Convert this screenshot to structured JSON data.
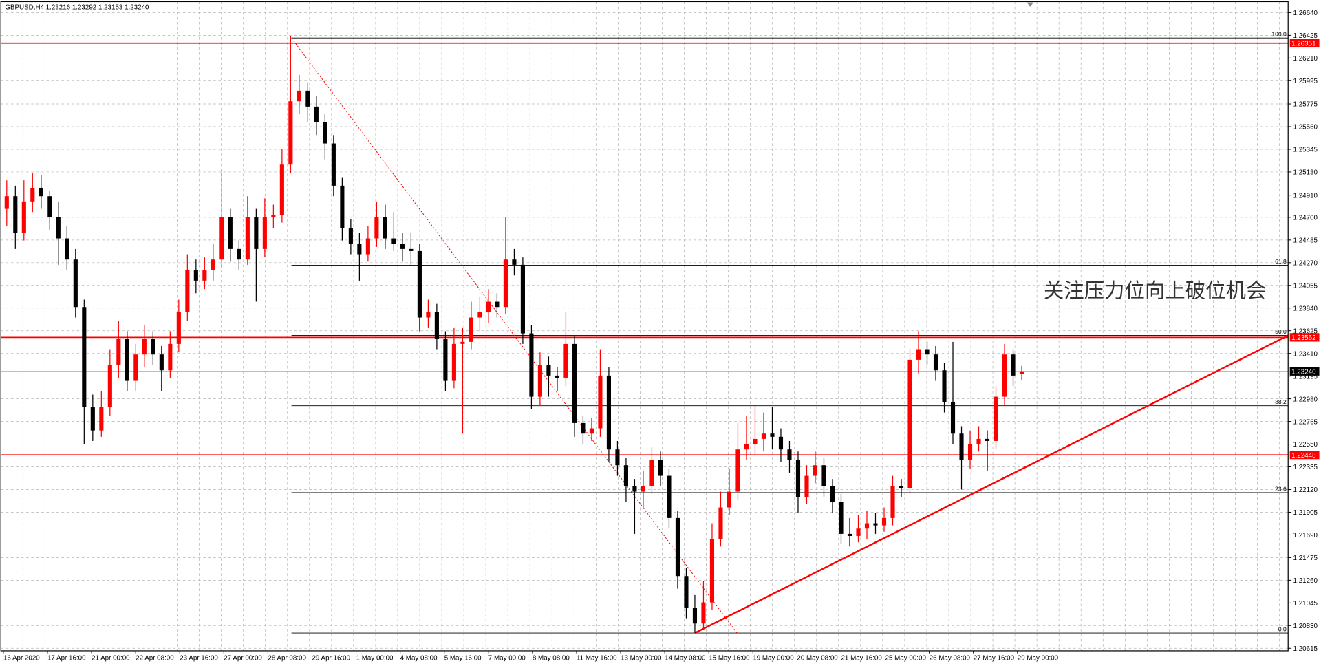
{
  "chart_data": {
    "type": "candlestick",
    "title": "GBPUSD,H4  1.23216 1.23292 1.23153 1.23240",
    "annotation": "关注压力位向上破位机会",
    "up_color": "#ff0000",
    "down_color": "#000000",
    "grid": true,
    "ylim": [
      1.20591,
      1.26744
    ],
    "yticks": [
      {
        "value": 1.2664,
        "label": "1.26640"
      },
      1.26425,
      {
        "value": 1.2621,
        "label": "1.26210"
      },
      1.25995,
      1.25775,
      {
        "value": 1.2556,
        "label": "1.25560"
      },
      1.25345,
      {
        "value": 1.2513,
        "label": "1.25130"
      },
      {
        "value": 1.2491,
        "label": "1.24910"
      },
      {
        "value": 1.247,
        "label": "1.24700"
      },
      1.24485,
      {
        "value": 1.2427,
        "label": "1.24270"
      },
      1.24055,
      {
        "value": 1.2384,
        "label": "1.23840"
      },
      1.23625,
      {
        "value": 1.2341,
        "label": "1.23410"
      },
      1.23195,
      {
        "value": 1.2298,
        "label": "1.22980"
      },
      1.22765,
      {
        "value": 1.2255,
        "label": "1.22550"
      },
      1.22335,
      {
        "value": 1.2212,
        "label": "1.22120"
      },
      1.21905,
      {
        "value": 1.2169,
        "label": "1.21690"
      },
      1.21475,
      {
        "value": 1.2126,
        "label": "1.21260"
      },
      1.21045,
      {
        "value": 1.2083,
        "label": "1.20830"
      },
      1.20615
    ],
    "xlabels": [
      "16 Apr 2020",
      "17 Apr 16:00",
      "21 Apr 00:00",
      "22 Apr 08:00",
      "23 Apr 16:00",
      "27 Apr 00:00",
      "28 Apr 08:00",
      "29 Apr 16:00",
      "1 May 00:00",
      "4 May 08:00",
      "5 May 16:00",
      "7 May 00:00",
      "8 May 08:00",
      "11 May 16:00",
      "13 May 00:00",
      "14 May 08:00",
      "15 May 16:00",
      "19 May 00:00",
      "20 May 08:00",
      "21 May 16:00",
      "25 May 00:00",
      "26 May 08:00",
      "27 May 16:00",
      "29 May 00:00"
    ],
    "hlines": [
      {
        "price": 1.26351,
        "color": "#ff0000",
        "label_color": "#ff0000"
      },
      {
        "price": 1.23562,
        "color": "#ff0000",
        "label_color": "#ff0000"
      },
      {
        "price": 1.22448,
        "color": "#ff0000",
        "label_color": "#ff0000"
      },
      {
        "price": {
          "value": 1.2324,
          "label": "1.23240"
        },
        "color": "#a8a8a8",
        "label_color": "#000000"
      }
    ],
    "fibonacci": {
      "high": 1.264,
      "low": 1.2076,
      "color": "#ff0000",
      "levels": [
        {
          "value": 100,
          "label": "100.0"
        },
        {
          "value": 61.8,
          "label": "61.8"
        },
        {
          "value": 50,
          "label": "50.0"
        },
        {
          "value": 38.2,
          "label": "38.2"
        },
        {
          "value": 23.6,
          "label": "23.6"
        },
        {
          "value": 0,
          "label": "0.0"
        }
      ]
    },
    "trend_line_end": 1.2358,
    "trend_line_color": "#ff0000",
    "ohlc": [
      [
        1.2478,
        1.2505,
        1.2462,
        1.249
      ],
      [
        1.249,
        1.25,
        1.244,
        1.2455
      ],
      [
        1.2455,
        1.2505,
        1.2448,
        1.2485
      ],
      [
        1.2485,
        1.2512,
        1.2475,
        1.2498
      ],
      [
        1.2498,
        1.251,
        1.2478,
        1.249
      ],
      [
        1.249,
        1.2495,
        1.2458,
        1.247
      ],
      [
        1.247,
        1.2485,
        1.2425,
        1.245
      ],
      [
        1.245,
        1.2462,
        1.242,
        1.243
      ],
      [
        1.243,
        1.244,
        1.2375,
        1.2385
      ],
      [
        1.2385,
        1.2392,
        1.2255,
        1.229
      ],
      [
        1.229,
        1.2302,
        1.2258,
        1.2268
      ],
      [
        1.2268,
        1.2305,
        1.2262,
        1.229
      ],
      [
        1.229,
        1.2345,
        1.2282,
        1.233
      ],
      [
        1.233,
        1.2372,
        1.2318,
        1.2355
      ],
      [
        1.2355,
        1.2362,
        1.2305,
        1.2315
      ],
      [
        1.2315,
        1.235,
        1.2305,
        1.234
      ],
      [
        1.234,
        1.2368,
        1.2328,
        1.2355
      ],
      [
        1.2355,
        1.2362,
        1.233,
        1.234
      ],
      [
        1.234,
        1.2348,
        1.2305,
        1.2325
      ],
      [
        1.2325,
        1.2362,
        1.2318,
        1.235
      ],
      [
        1.235,
        1.2392,
        1.2342,
        1.238
      ],
      [
        1.238,
        1.2435,
        1.2372,
        1.242
      ],
      [
        1.242,
        1.243,
        1.2398,
        1.241
      ],
      [
        1.241,
        1.2432,
        1.2402,
        1.242
      ],
      [
        1.242,
        1.2445,
        1.241,
        1.243
      ],
      [
        1.243,
        1.2515,
        1.2422,
        1.247
      ],
      [
        1.247,
        1.2478,
        1.2428,
        1.244
      ],
      [
        1.244,
        1.2448,
        1.242,
        1.243
      ],
      [
        1.243,
        1.249,
        1.2425,
        1.247
      ],
      [
        1.247,
        1.2478,
        1.239,
        1.244
      ],
      [
        1.244,
        1.2488,
        1.2432,
        1.247
      ],
      [
        1.247,
        1.2482,
        1.246,
        1.2472
      ],
      [
        1.2472,
        1.2535,
        1.2465,
        1.252
      ],
      [
        1.252,
        1.2642,
        1.2512,
        1.258
      ],
      [
        1.258,
        1.2605,
        1.2568,
        1.259
      ],
      [
        1.259,
        1.2598,
        1.256,
        1.2575
      ],
      [
        1.2575,
        1.2585,
        1.2548,
        1.256
      ],
      [
        1.256,
        1.2568,
        1.2525,
        1.254
      ],
      [
        1.254,
        1.2548,
        1.249,
        1.25
      ],
      [
        1.25,
        1.2508,
        1.2448,
        1.246
      ],
      [
        1.246,
        1.2468,
        1.2435,
        1.2445
      ],
      [
        1.2445,
        1.2455,
        1.241,
        1.2435
      ],
      [
        1.2435,
        1.2462,
        1.2428,
        1.245
      ],
      [
        1.245,
        1.2485,
        1.2442,
        1.247
      ],
      [
        1.247,
        1.2482,
        1.244,
        1.245
      ],
      [
        1.245,
        1.2475,
        1.2438,
        1.2445
      ],
      [
        1.2445,
        1.2455,
        1.2428,
        1.244
      ],
      [
        1.244,
        1.2455,
        1.2425,
        1.2438
      ],
      [
        1.2438,
        1.2445,
        1.2362,
        1.2375
      ],
      [
        1.2375,
        1.2392,
        1.2365,
        1.238
      ],
      [
        1.238,
        1.2388,
        1.2345,
        1.2355
      ],
      [
        1.2355,
        1.2362,
        1.2305,
        1.2315
      ],
      [
        1.2315,
        1.2365,
        1.2308,
        1.235
      ],
      [
        1.235,
        1.2365,
        1.2265,
        1.2352
      ],
      [
        1.2352,
        1.239,
        1.2345,
        1.2375
      ],
      [
        1.2375,
        1.2395,
        1.2362,
        1.238
      ],
      [
        1.238,
        1.2402,
        1.237,
        1.239
      ],
      [
        1.239,
        1.2398,
        1.2375,
        1.2385
      ],
      [
        1.2385,
        1.247,
        1.2378,
        1.243
      ],
      [
        1.243,
        1.244,
        1.2415,
        1.2425
      ],
      [
        1.2425,
        1.2432,
        1.235,
        1.236
      ],
      [
        1.236,
        1.2368,
        1.2288,
        1.23
      ],
      [
        1.23,
        1.2342,
        1.2292,
        1.233
      ],
      [
        1.233,
        1.2338,
        1.23,
        1.232
      ],
      [
        1.232,
        1.2328,
        1.2305,
        1.2318
      ],
      [
        1.2318,
        1.238,
        1.231,
        1.235
      ],
      [
        1.235,
        1.2358,
        1.2262,
        1.2275
      ],
      [
        1.2275,
        1.2282,
        1.2255,
        1.2265
      ],
      [
        1.2265,
        1.228,
        1.2258,
        1.227
      ],
      [
        1.227,
        1.2345,
        1.2262,
        1.232
      ],
      [
        1.232,
        1.2328,
        1.2238,
        1.225
      ],
      [
        1.225,
        1.2258,
        1.2225,
        1.2235
      ],
      [
        1.2235,
        1.2242,
        1.22,
        1.2215
      ],
      [
        1.2215,
        1.2222,
        1.217,
        1.221
      ],
      [
        1.221,
        1.223,
        1.2195,
        1.2215
      ],
      [
        1.2215,
        1.2252,
        1.2208,
        1.224
      ],
      [
        1.224,
        1.2248,
        1.2215,
        1.2225
      ],
      [
        1.2225,
        1.2232,
        1.2175,
        1.2185
      ],
      [
        1.2185,
        1.2192,
        1.2118,
        1.213
      ],
      [
        1.213,
        1.2138,
        1.209,
        1.21
      ],
      [
        1.21,
        1.2112,
        1.2076,
        1.2085
      ],
      [
        1.2085,
        1.2125,
        1.208,
        1.2105
      ],
      [
        1.2105,
        1.218,
        1.2098,
        1.2165
      ],
      [
        1.2165,
        1.221,
        1.2158,
        1.2195
      ],
      [
        1.2195,
        1.2232,
        1.2188,
        1.221
      ],
      [
        1.221,
        1.2275,
        1.2202,
        1.225
      ],
      [
        1.225,
        1.2282,
        1.224,
        1.2255
      ],
      [
        1.2255,
        1.2292,
        1.2245,
        1.226
      ],
      [
        1.226,
        1.2285,
        1.2248,
        1.2265
      ],
      [
        1.2265,
        1.229,
        1.225,
        1.2262
      ],
      [
        1.2262,
        1.227,
        1.2238,
        1.225
      ],
      [
        1.225,
        1.2258,
        1.2228,
        1.224
      ],
      [
        1.224,
        1.2248,
        1.219,
        1.2205
      ],
      [
        1.2205,
        1.2235,
        1.2198,
        1.2225
      ],
      [
        1.2225,
        1.2248,
        1.2218,
        1.2235
      ],
      [
        1.2235,
        1.2242,
        1.2205,
        1.2215
      ],
      [
        1.2215,
        1.2222,
        1.219,
        1.22
      ],
      [
        1.22,
        1.2208,
        1.216,
        1.217
      ],
      [
        1.217,
        1.2185,
        1.2158,
        1.2168
      ],
      [
        1.2168,
        1.2188,
        1.2162,
        1.2175
      ],
      [
        1.2175,
        1.2192,
        1.2165,
        1.218
      ],
      [
        1.218,
        1.219,
        1.217,
        1.2178
      ],
      [
        1.2178,
        1.2195,
        1.2172,
        1.2185
      ],
      [
        1.2185,
        1.2225,
        1.2178,
        1.2215
      ],
      [
        1.2215,
        1.2222,
        1.2205,
        1.2213
      ],
      [
        1.2213,
        1.2345,
        1.2208,
        1.2335
      ],
      [
        1.2335,
        1.2362,
        1.2322,
        1.2345
      ],
      [
        1.2345,
        1.2352,
        1.233,
        1.234
      ],
      [
        1.234,
        1.2348,
        1.2315,
        1.2325
      ],
      [
        1.2325,
        1.2332,
        1.2285,
        1.2295
      ],
      [
        1.2295,
        1.2352,
        1.2255,
        1.2265
      ],
      [
        1.2265,
        1.2272,
        1.2212,
        1.224
      ],
      [
        1.224,
        1.2268,
        1.2232,
        1.2255
      ],
      [
        1.2255,
        1.2272,
        1.2248,
        1.226
      ],
      [
        1.226,
        1.2268,
        1.223,
        1.2258
      ],
      [
        1.2258,
        1.231,
        1.225,
        1.23
      ],
      [
        1.23,
        1.235,
        1.2292,
        1.234
      ],
      [
        1.234,
        1.2345,
        1.231,
        1.232
      ],
      [
        1.23216,
        1.23292,
        1.23153,
        1.2324
      ]
    ]
  }
}
